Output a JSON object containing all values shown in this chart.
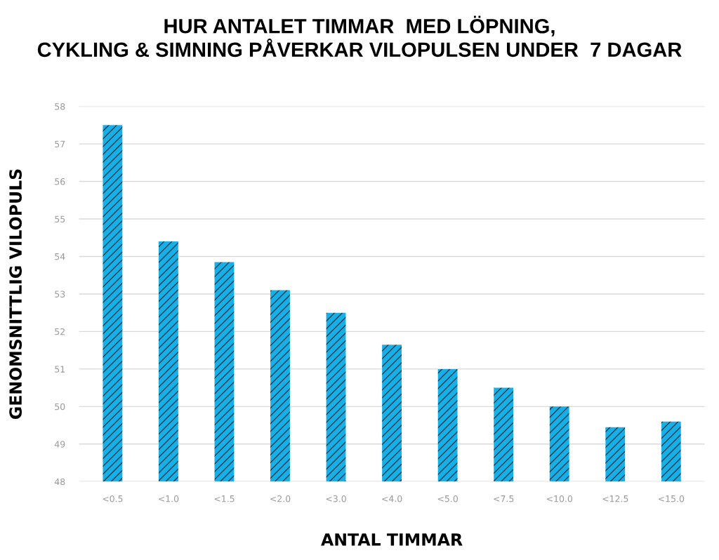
{
  "chart_data": {
    "type": "bar",
    "title": "HUR ANTALET TIMMAR  MED LÖPNING,\nCYKLING & SIMNING PÅVERKAR VILOPULSEN UNDER  7 DAGAR",
    "xlabel": "ANTAL TIMMAR",
    "ylabel": "GENOMSNITTLIG VILOPULS",
    "categories": [
      "<0.5",
      "<1.0",
      "<1.5",
      "<2.0",
      "<3.0",
      "<4.0",
      "<5.0",
      "<7.5",
      "<10.0",
      "<12.5",
      "<15.0"
    ],
    "values": [
      57.5,
      54.4,
      53.85,
      53.1,
      52.5,
      51.65,
      51.0,
      50.5,
      50.0,
      49.45,
      49.6
    ],
    "color": "#16b0e8",
    "ylim": [
      48,
      58
    ],
    "yticks": [
      48,
      49,
      50,
      51,
      52,
      53,
      54,
      55,
      56,
      57,
      58
    ],
    "grid": "y"
  }
}
